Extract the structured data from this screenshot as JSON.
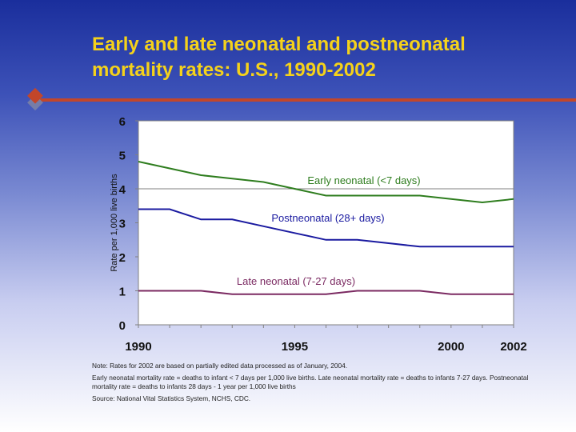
{
  "slide": {
    "title_line1": "Early and late neonatal and postneonatal",
    "title_line2": "mortality rates: U.S., 1990-2002",
    "note_main": "Note: Rates for 2002 are based on partially edited data processed as of January, 2004.",
    "note_definitions": "Early neonatal mortality rate = deaths to infant < 7 days per 1,000 live births. Late neonatal mortality rate = deaths to infants 7-27 days.  Postneonatal mortality rate = deaths to infants 28 days - 1 year per 1,000 live births",
    "note_source": "Source: National Vital Statistics System, NCHS, CDC.",
    "colors": {
      "title": "#f5d21a",
      "accent_rule": "#c2462a",
      "early": "#2e7d1e",
      "post": "#1a1aa0",
      "late": "#7b2a62"
    }
  },
  "chart_data": {
    "type": "line",
    "ylabel": "Rate per 1,000 live births",
    "xlabel": "",
    "ylim": [
      0,
      6
    ],
    "yticks": [
      "0",
      "1",
      "2",
      "3",
      "4",
      "5",
      "6"
    ],
    "xticks": [
      "1990",
      "1995",
      "2000",
      "2002"
    ],
    "x": [
      1990,
      1991,
      1992,
      1993,
      1994,
      1995,
      1996,
      1997,
      1998,
      1999,
      2000,
      2001,
      2002
    ],
    "grid": "horizontal at 4",
    "series": [
      {
        "name": "Early neonatal (<7 days)",
        "color": "#2e7d1e",
        "values": [
          4.8,
          4.6,
          4.4,
          4.3,
          4.2,
          4.0,
          3.8,
          3.8,
          3.8,
          3.8,
          3.7,
          3.6,
          3.7
        ]
      },
      {
        "name": "Postneonatal (28+ days)",
        "color": "#1a1aa0",
        "values": [
          3.4,
          3.4,
          3.1,
          3.1,
          2.9,
          2.7,
          2.5,
          2.5,
          2.4,
          2.3,
          2.3,
          2.3,
          2.3
        ]
      },
      {
        "name": "Late neonatal (7-27 days)",
        "color": "#7b2a62",
        "values": [
          1.0,
          1.0,
          1.0,
          0.9,
          0.9,
          0.9,
          0.9,
          1.0,
          1.0,
          1.0,
          0.9,
          0.9,
          0.9
        ]
      }
    ]
  }
}
